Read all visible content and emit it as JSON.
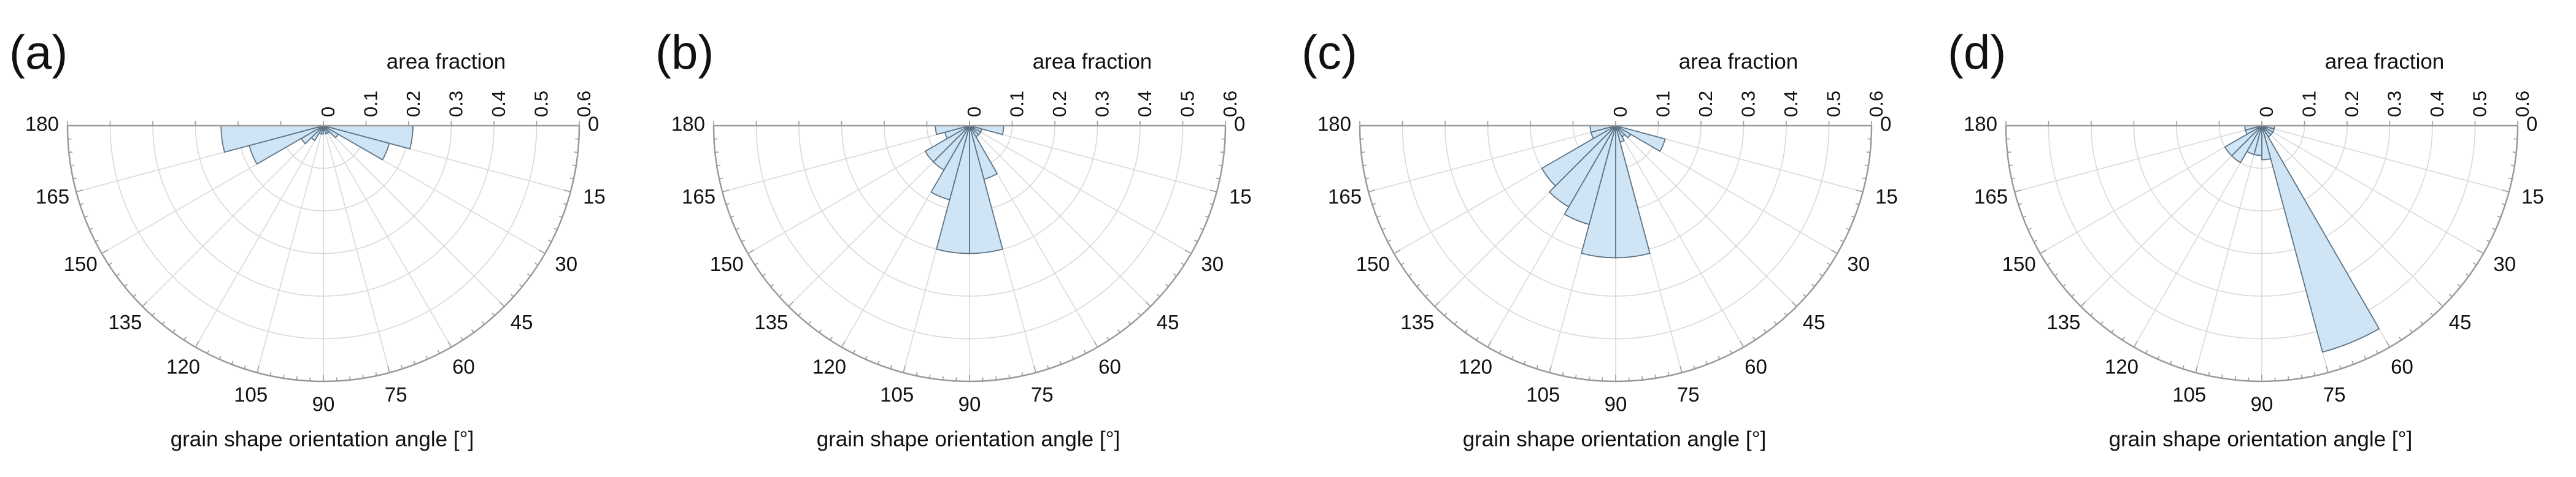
{
  "chart_data": [
    {
      "type": "polar-histogram",
      "panel_label": "(a)",
      "radial_axis_label": "area fraction",
      "angular_axis_label": "grain shape orientation angle [°]",
      "radial_ticks": [
        "0",
        "0.1",
        "0.2",
        "0.3",
        "0.4",
        "0.5",
        "0.6"
      ],
      "rlim": [
        0,
        0.6
      ],
      "angular_ticks": [
        "0",
        "15",
        "30",
        "45",
        "60",
        "75",
        "90",
        "105",
        "120",
        "135",
        "150",
        "165",
        "180"
      ],
      "theta_range_deg": [
        0,
        180
      ],
      "bin_edges_deg": [
        0,
        15,
        30,
        45,
        60,
        75,
        90,
        105,
        120,
        135,
        150,
        165,
        180
      ],
      "area_fraction": [
        0.21,
        0.16,
        0.04,
        0.02,
        0.02,
        0.01,
        0.02,
        0.02,
        0.04,
        0.06,
        0.18,
        0.24
      ],
      "grid": true,
      "bar_color": "#cfe4f4",
      "bar_edge_color": "#5d7486"
    },
    {
      "type": "polar-histogram",
      "panel_label": "(b)",
      "radial_axis_label": "area fraction",
      "angular_axis_label": "grain shape orientation angle [°]",
      "radial_ticks": [
        "0",
        "0.1",
        "0.2",
        "0.3",
        "0.4",
        "0.5",
        "0.6"
      ],
      "rlim": [
        0,
        0.6
      ],
      "angular_ticks": [
        "0",
        "15",
        "30",
        "45",
        "60",
        "75",
        "90",
        "105",
        "120",
        "135",
        "150",
        "165",
        "180"
      ],
      "theta_range_deg": [
        0,
        180
      ],
      "bin_edges_deg": [
        0,
        15,
        30,
        45,
        60,
        75,
        90,
        105,
        120,
        135,
        150,
        165,
        180
      ],
      "area_fraction": [
        0.08,
        0.03,
        0.03,
        0.03,
        0.13,
        0.3,
        0.3,
        0.18,
        0.12,
        0.12,
        0.06,
        0.08
      ],
      "grid": true,
      "bar_color": "#cfe4f4",
      "bar_edge_color": "#5d7486"
    },
    {
      "type": "polar-histogram",
      "panel_label": "(c)",
      "radial_axis_label": "area fraction",
      "angular_axis_label": "grain shape orientation angle [°]",
      "radial_ticks": [
        "0",
        "0.1",
        "0.2",
        "0.3",
        "0.4",
        "0.5",
        "0.6"
      ],
      "rlim": [
        0,
        0.6
      ],
      "angular_ticks": [
        "0",
        "15",
        "30",
        "45",
        "60",
        "75",
        "90",
        "105",
        "120",
        "135",
        "150",
        "165",
        "180"
      ],
      "theta_range_deg": [
        0,
        180
      ],
      "bin_edges_deg": [
        0,
        15,
        30,
        45,
        60,
        75,
        90,
        105,
        120,
        135,
        150,
        165,
        180
      ],
      "area_fraction": [
        0.01,
        0.12,
        0.04,
        0.03,
        0.04,
        0.31,
        0.31,
        0.24,
        0.22,
        0.2,
        0.06,
        0.06
      ],
      "grid": true,
      "bar_color": "#cfe4f4",
      "bar_edge_color": "#5d7486"
    },
    {
      "type": "polar-histogram",
      "panel_label": "(d)",
      "radial_axis_label": "area fraction",
      "angular_axis_label": "grain shape orientation angle [°]",
      "radial_ticks": [
        "0",
        "0.1",
        "0.2",
        "0.3",
        "0.4",
        "0.5",
        "0.6"
      ],
      "rlim": [
        0,
        0.6
      ],
      "angular_ticks": [
        "0",
        "15",
        "30",
        "45",
        "60",
        "75",
        "90",
        "105",
        "120",
        "135",
        "150",
        "165",
        "180"
      ],
      "theta_range_deg": [
        0,
        180
      ],
      "bin_edges_deg": [
        0,
        15,
        30,
        45,
        60,
        75,
        90,
        105,
        120,
        135,
        150,
        165,
        180
      ],
      "area_fraction": [
        0.03,
        0.03,
        0.03,
        0.03,
        0.55,
        0.08,
        0.07,
        0.07,
        0.1,
        0.1,
        0.04,
        0.04
      ],
      "grid": true,
      "bar_color": "#cfe4f4",
      "bar_edge_color": "#5d7486"
    }
  ]
}
